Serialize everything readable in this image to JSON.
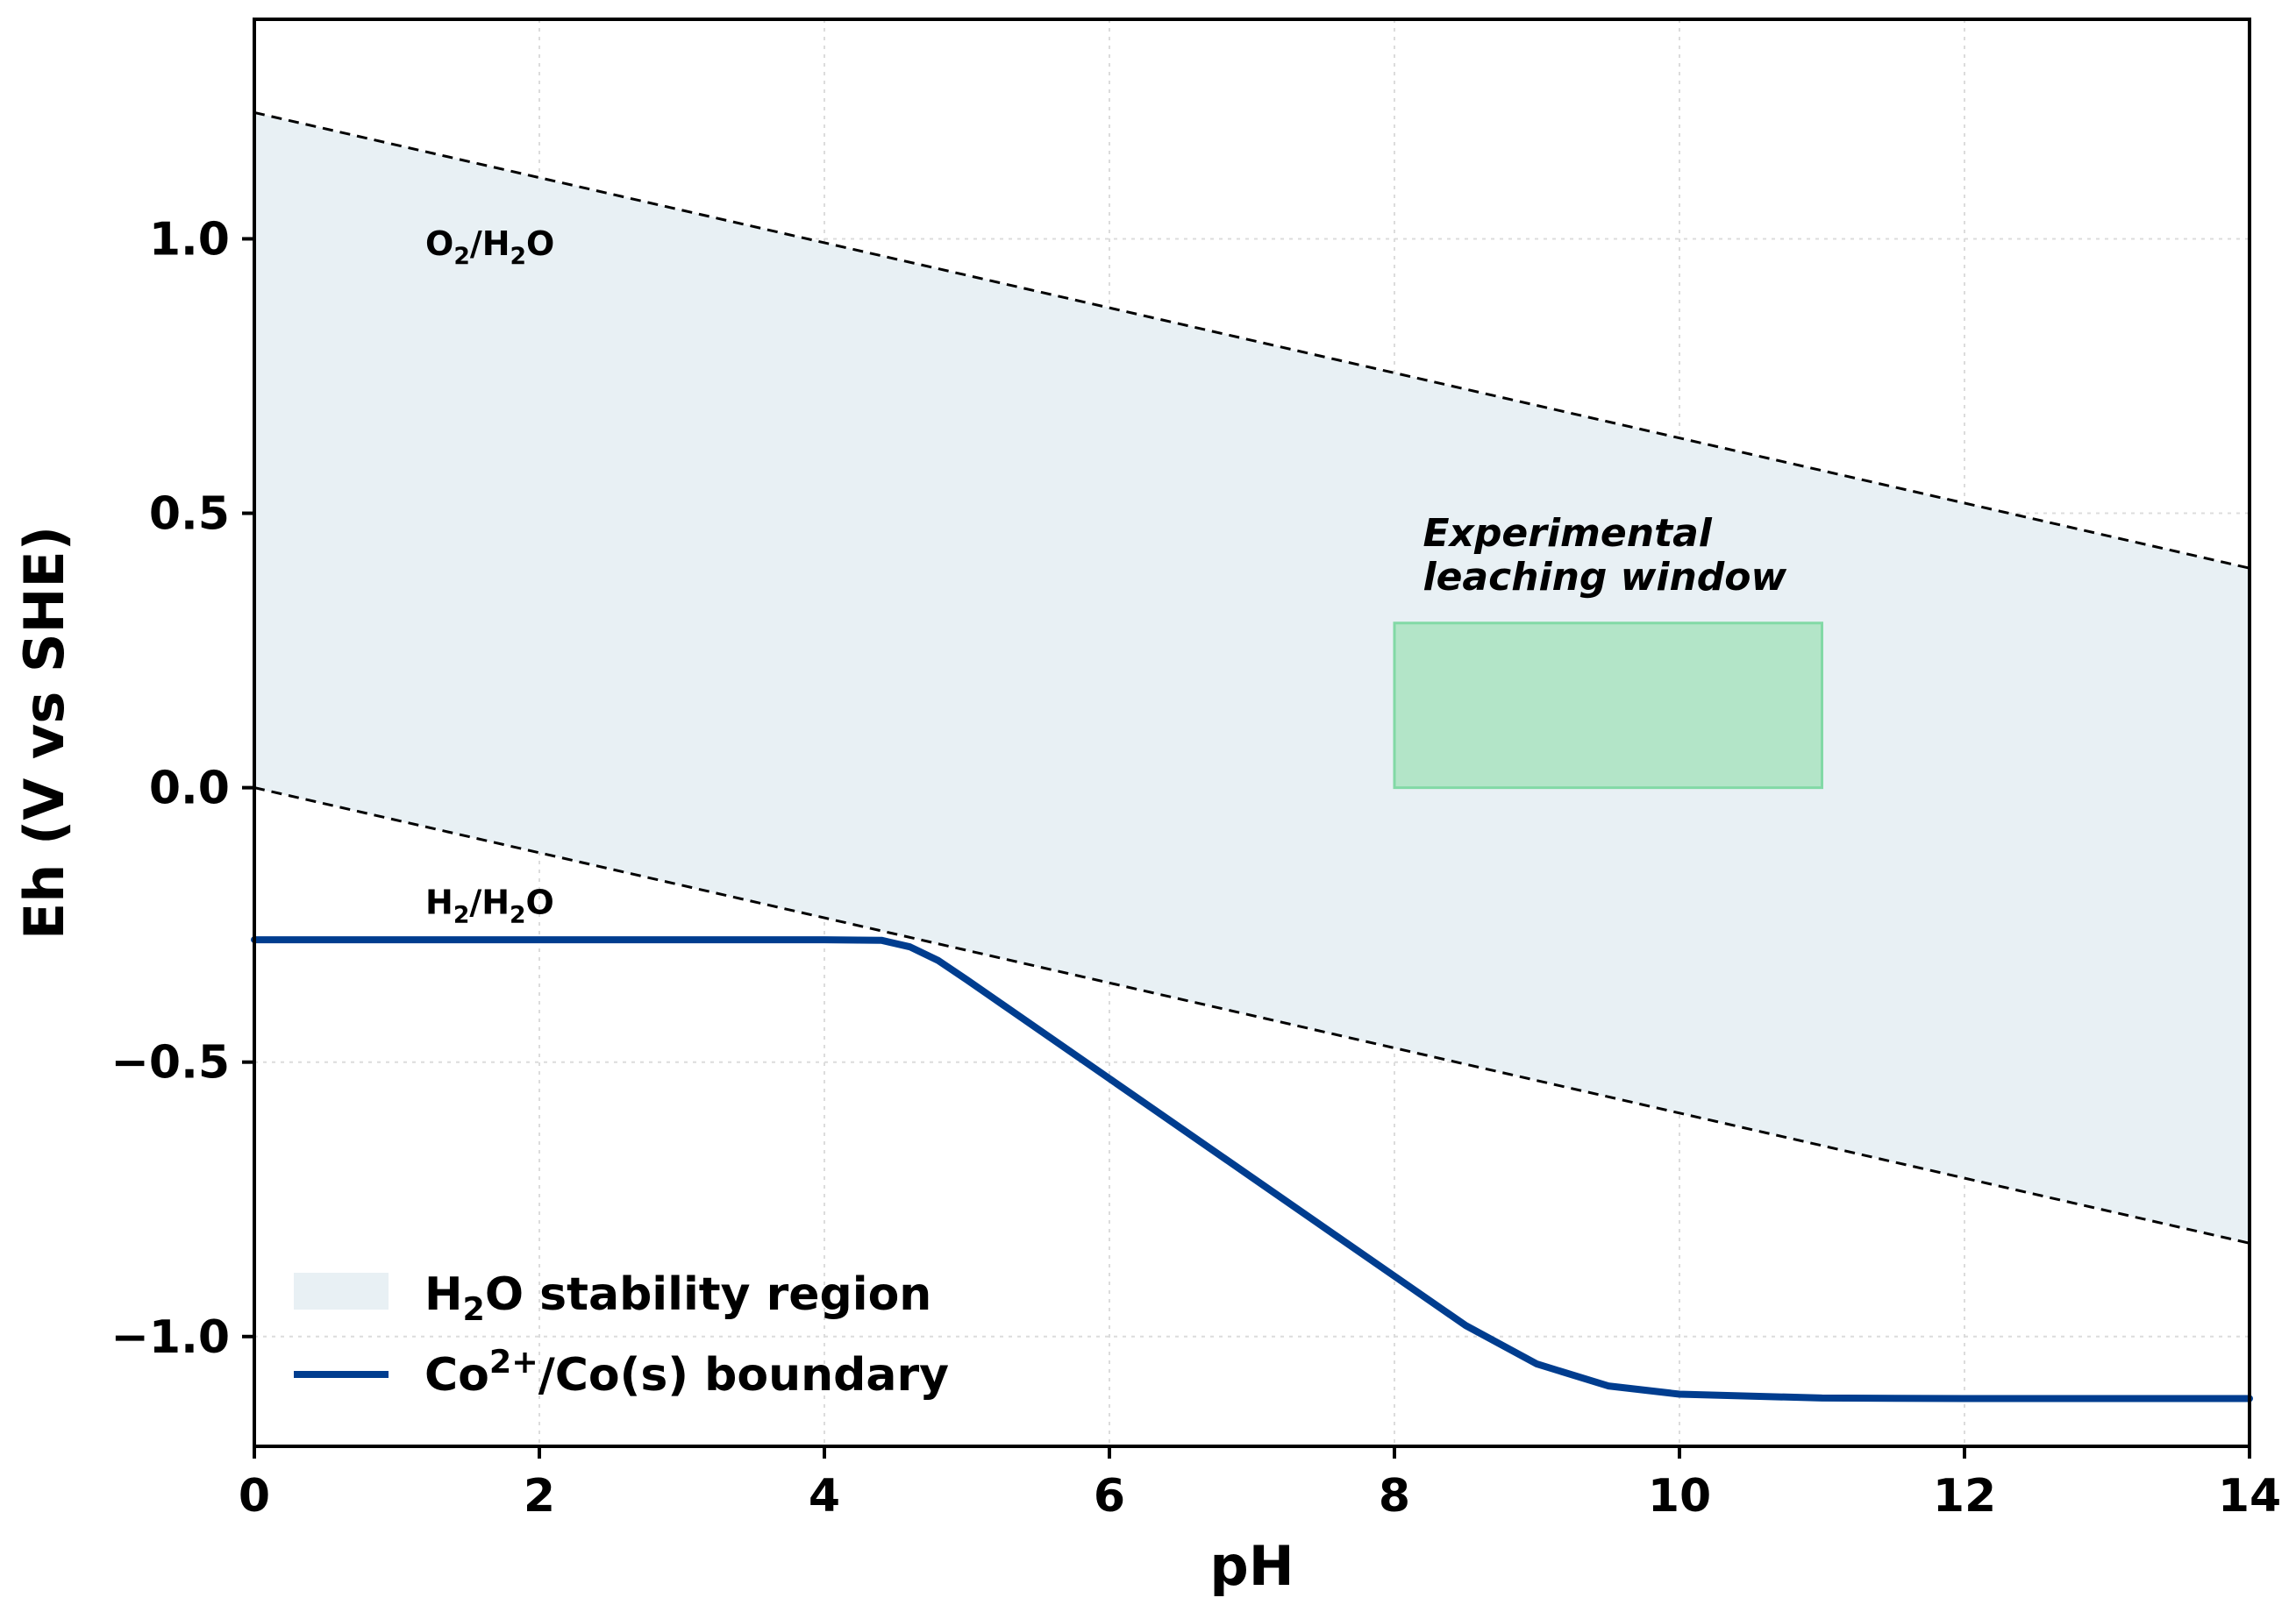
{
  "chart_data": {
    "type": "line",
    "title": "",
    "xlabel": "pH",
    "ylabel": "Eh (V vs SHE)",
    "xlim": [
      0,
      14
    ],
    "ylim": [
      -1.2,
      1.4
    ],
    "xticks": [
      0,
      2,
      4,
      6,
      8,
      10,
      12,
      14
    ],
    "xtick_labels": [
      "0",
      "2",
      "4",
      "6",
      "8",
      "10",
      "12",
      "14"
    ],
    "yticks": [
      -1.0,
      -0.5,
      0.0,
      0.5,
      1.0
    ],
    "ytick_labels": [
      "−1.0",
      "−0.5",
      "0.0",
      "0.5",
      "1.0"
    ],
    "grid": true,
    "legend_position": "lower-left",
    "series": [
      {
        "name": "O2/H2O",
        "style": "dashed",
        "color": "#000000",
        "x": [
          0,
          14
        ],
        "y": [
          1.23,
          0.4
        ]
      },
      {
        "name": "H2/H2O",
        "style": "dashed",
        "color": "#000000",
        "x": [
          0,
          14
        ],
        "y": [
          0.0,
          -0.83
        ]
      },
      {
        "name": "Co2+/Co(s) boundary",
        "style": "solid",
        "color": "#003d8f",
        "x": [
          0,
          1,
          2,
          3,
          4,
          4.4,
          4.6,
          4.8,
          5,
          6,
          7,
          8,
          8.5,
          9,
          9.5,
          10,
          11,
          12,
          13,
          14
        ],
        "y": [
          -0.277,
          -0.277,
          -0.277,
          -0.277,
          -0.277,
          -0.278,
          -0.29,
          -0.315,
          -0.35,
          -0.53,
          -0.71,
          -0.89,
          -0.98,
          -1.05,
          -1.09,
          -1.105,
          -1.112,
          -1.113,
          -1.113,
          -1.113
        ]
      }
    ],
    "regions": [
      {
        "name": "H2O stability region",
        "color": "#e8f0f4",
        "x": [
          0,
          14
        ],
        "upper": [
          1.23,
          0.4
        ],
        "lower": [
          0.0,
          -0.83
        ]
      },
      {
        "name": "Experimental leaching window",
        "color": "#b3e5c8",
        "edge_color": "#82d9a6",
        "x": [
          8,
          11
        ],
        "y": [
          0.0,
          0.3
        ]
      }
    ],
    "annotations": [
      {
        "id": "o2",
        "base": "O",
        "sub1": "2",
        "mid": "/H",
        "sub2": "2",
        "tail": "O",
        "x": 1.2,
        "y": 0.97
      },
      {
        "id": "h2",
        "base": "H",
        "sub1": "2",
        "mid": "/H",
        "sub2": "2",
        "tail": "O",
        "x": 1.2,
        "y": -0.23
      },
      {
        "id": "window",
        "lines": [
          "Experimental",
          "leaching window"
        ],
        "x": 8.2,
        "y": 0.44
      }
    ],
    "legend": [
      {
        "id": "water",
        "base": "H",
        "sub": "2",
        "tail": "O stability region"
      },
      {
        "id": "co",
        "base": "Co",
        "sup": "2+",
        "tail": "/Co(s) boundary"
      }
    ]
  }
}
